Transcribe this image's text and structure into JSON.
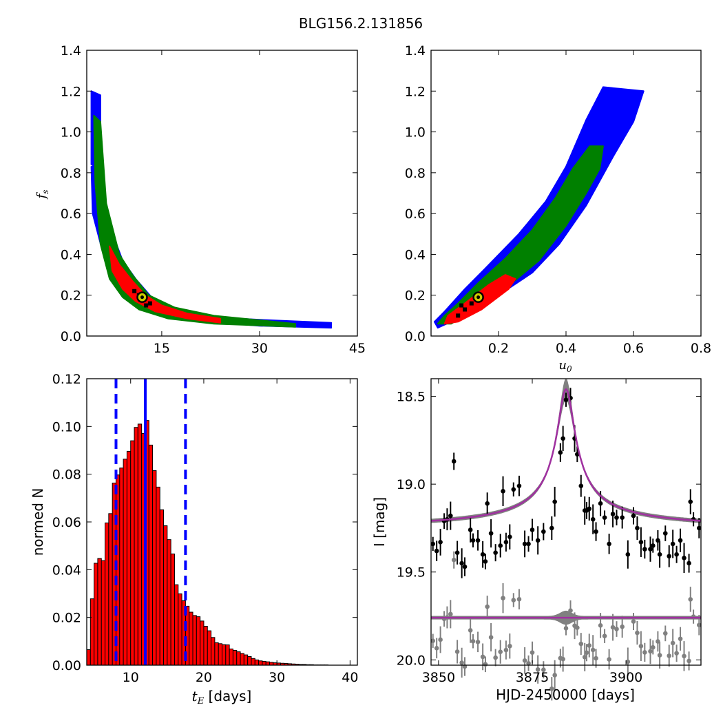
{
  "figure": {
    "title": "BLG156.2.131856"
  },
  "colors": {
    "sigma3": "#0000ff",
    "sigma2": "#008000",
    "sigma1": "#ff0000",
    "best": "#000000",
    "marker_ring": "#000000",
    "marker_fill": "#cccc00",
    "hist_bar": "#ff0000",
    "vline": "#0000ff",
    "model": "#a030a0",
    "model_band": "#808080",
    "data_main": "#000000",
    "data_resid": "#808080"
  },
  "chart_data": [
    {
      "id": "fs_vs_tE",
      "type": "heatmap",
      "xlabel": "",
      "ylabel": "f_s",
      "xlim": [
        3.5,
        45
      ],
      "ylim": [
        0.0,
        1.4
      ],
      "xticks": [
        "15",
        "30",
        "45"
      ],
      "yticks": [
        "0.0",
        "0.2",
        "0.4",
        "0.6",
        "0.8",
        "1.0",
        "1.2",
        "1.4"
      ],
      "best_fit": {
        "x": 12.0,
        "y": 0.19
      },
      "regions": {
        "sigma3": [
          [
            4.2,
            0.83
          ],
          [
            5.5,
            0.85
          ],
          [
            7,
            0.54
          ],
          [
            9,
            0.37
          ],
          [
            11,
            0.28
          ],
          [
            14,
            0.17
          ],
          [
            18,
            0.13
          ],
          [
            24,
            0.09
          ],
          [
            30,
            0.08
          ],
          [
            41,
            0.065
          ],
          [
            41,
            0.04
          ],
          [
            30,
            0.05
          ],
          [
            22,
            0.07
          ],
          [
            16,
            0.1
          ],
          [
            12,
            0.14
          ],
          [
            10,
            0.18
          ],
          [
            8,
            0.24
          ],
          [
            6.2,
            0.38
          ],
          [
            4.4,
            0.6
          ]
        ],
        "sigma3_top": [
          [
            4.2,
            1.2
          ],
          [
            5.6,
            1.18
          ],
          [
            5.6,
            0.84
          ],
          [
            4.2,
            0.84
          ]
        ],
        "sigma2": [
          [
            4.6,
            1.08
          ],
          [
            5.6,
            1.05
          ],
          [
            6.5,
            0.65
          ],
          [
            8.5,
            0.4
          ],
          [
            10.5,
            0.3
          ],
          [
            13,
            0.2
          ],
          [
            17,
            0.14
          ],
          [
            23,
            0.1
          ],
          [
            35.5,
            0.06
          ],
          [
            35.5,
            0.045
          ],
          [
            23,
            0.06
          ],
          [
            16,
            0.085
          ],
          [
            11.5,
            0.13
          ],
          [
            9,
            0.19
          ],
          [
            7,
            0.28
          ],
          [
            5.6,
            0.45
          ],
          [
            4.8,
            0.75
          ]
        ],
        "sigma1": [
          [
            7.0,
            0.44
          ],
          [
            8.5,
            0.35
          ],
          [
            10.5,
            0.27
          ],
          [
            12.5,
            0.2
          ],
          [
            15,
            0.15
          ],
          [
            19,
            0.11
          ],
          [
            24,
            0.085
          ],
          [
            24,
            0.065
          ],
          [
            19,
            0.085
          ],
          [
            14,
            0.12
          ],
          [
            11,
            0.17
          ],
          [
            9,
            0.23
          ],
          [
            7.4,
            0.32
          ]
        ]
      }
    },
    {
      "id": "fs_vs_u0",
      "type": "heatmap",
      "xlabel": "u_0",
      "ylabel": "",
      "xlim": [
        0.0,
        0.8
      ],
      "ylim": [
        0.0,
        1.4
      ],
      "xticks": [
        "0.2",
        "0.4",
        "0.6",
        "0.8"
      ],
      "yticks": [
        "0.0",
        "0.2",
        "0.4",
        "0.6",
        "0.8",
        "1.0",
        "1.2",
        "1.4"
      ],
      "best_fit": {
        "x": 0.14,
        "y": 0.19
      },
      "regions": {
        "sigma3": [
          [
            0.01,
            0.07
          ],
          [
            0.02,
            0.04
          ],
          [
            0.1,
            0.1
          ],
          [
            0.2,
            0.2
          ],
          [
            0.3,
            0.31
          ],
          [
            0.38,
            0.45
          ],
          [
            0.46,
            0.64
          ],
          [
            0.54,
            0.88
          ],
          [
            0.6,
            1.05
          ],
          [
            0.63,
            1.2
          ],
          [
            0.51,
            1.22
          ],
          [
            0.46,
            1.06
          ],
          [
            0.4,
            0.83
          ],
          [
            0.34,
            0.66
          ],
          [
            0.26,
            0.5
          ],
          [
            0.16,
            0.33
          ],
          [
            0.1,
            0.23
          ],
          [
            0.04,
            0.12
          ]
        ],
        "sigma2": [
          [
            0.02,
            0.06
          ],
          [
            0.06,
            0.06
          ],
          [
            0.14,
            0.14
          ],
          [
            0.24,
            0.26
          ],
          [
            0.32,
            0.37
          ],
          [
            0.4,
            0.54
          ],
          [
            0.46,
            0.7
          ],
          [
            0.5,
            0.82
          ],
          [
            0.51,
            0.93
          ],
          [
            0.47,
            0.93
          ],
          [
            0.42,
            0.82
          ],
          [
            0.37,
            0.68
          ],
          [
            0.3,
            0.52
          ],
          [
            0.22,
            0.38
          ],
          [
            0.14,
            0.26
          ],
          [
            0.08,
            0.16
          ],
          [
            0.04,
            0.1
          ]
        ],
        "sigma1": [
          [
            0.04,
            0.06
          ],
          [
            0.08,
            0.07
          ],
          [
            0.15,
            0.13
          ],
          [
            0.23,
            0.23
          ],
          [
            0.25,
            0.28
          ],
          [
            0.22,
            0.3
          ],
          [
            0.17,
            0.25
          ],
          [
            0.1,
            0.16
          ],
          [
            0.05,
            0.1
          ]
        ]
      }
    },
    {
      "id": "tE_histogram",
      "type": "bar",
      "xlabel": "t_E [days]",
      "ylabel": "normed N",
      "xlim": [
        4.0,
        41.0
      ],
      "ylim": [
        0.0,
        0.12
      ],
      "xticks": [
        "10",
        "20",
        "30",
        "40"
      ],
      "yticks": [
        "0.00",
        "0.02",
        "0.04",
        "0.06",
        "0.08",
        "0.10",
        "0.12"
      ],
      "bin_start": 4.0,
      "bin_width": 0.5,
      "values": [
        0.0065,
        0.0278,
        0.0427,
        0.0447,
        0.0438,
        0.0596,
        0.0635,
        0.0763,
        0.0797,
        0.0826,
        0.0863,
        0.0896,
        0.094,
        0.0996,
        0.101,
        0.0971,
        0.1025,
        0.0922,
        0.0815,
        0.0746,
        0.0651,
        0.0584,
        0.0526,
        0.0466,
        0.0337,
        0.0299,
        0.027,
        0.0247,
        0.0222,
        0.0208,
        0.0203,
        0.0185,
        0.0163,
        0.0144,
        0.0116,
        0.0094,
        0.009,
        0.0086,
        0.0085,
        0.0068,
        0.0062,
        0.0056,
        0.0049,
        0.0043,
        0.0036,
        0.0028,
        0.0022,
        0.0018,
        0.0016,
        0.0014,
        0.0012,
        0.001,
        0.0009,
        0.0008,
        0.0007,
        0.0006,
        0.0005,
        0.0004,
        0.0003,
        0.0003,
        0.0002,
        0.0002,
        0.0001,
        0.0001,
        0.0001,
        0.0001,
        0.0,
        0.0,
        0.0,
        0.0,
        0.0,
        0.0,
        0.0,
        0.0
      ],
      "vlines": [
        {
          "x": 8.0,
          "style": "dashed"
        },
        {
          "x": 12.0,
          "style": "solid"
        },
        {
          "x": 17.5,
          "style": "dashed"
        }
      ]
    },
    {
      "id": "lightcurve",
      "type": "scatter",
      "xlabel": "HJD-2450000 [days]",
      "ylabel": "I [mag]",
      "xlim": [
        3848,
        3920
      ],
      "ylim": [
        20.03,
        18.4
      ],
      "xticks": [
        "3850",
        "3875",
        "3900"
      ],
      "yticks": [
        "18.5",
        "19.0",
        "19.5",
        "20.0"
      ],
      "model": {
        "t0": 3884.0,
        "baseline": 19.26,
        "amplitude": 0.8,
        "tau": 2.3,
        "resid_baseline": 19.76
      },
      "series": [
        {
          "x": [
            3848.5,
            3849.5,
            3850.5,
            3851.5,
            3852.3,
            3853.2,
            3854.1,
            3855.0,
            3856.2,
            3857.0,
            3858.5,
            3859.2,
            3860.5,
            3861.8,
            3862.5,
            3863.0,
            3864.0,
            3865.2,
            3866.5,
            3867.2,
            3868.0,
            3869.0,
            3870.0,
            3871.5,
            3873.0,
            3874.0,
            3875.0,
            3876.5,
            3878.0,
            3880.2,
            3881.0,
            3882.5,
            3883.2,
            3884.0,
            3885.2,
            3886.3,
            3887.0,
            3888.0,
            3889.0,
            3889.5,
            3890.2,
            3891.2,
            3892.0,
            3893.2,
            3894.3,
            3895.5,
            3896.5,
            3897.5,
            3899.0,
            3900.5,
            3902.0,
            3903.0,
            3904.0,
            3905.0,
            3906.5,
            3907.2,
            3908.5,
            3909.0,
            3910.5,
            3911.5,
            3912.5,
            3913.5,
            3914.5,
            3915.5,
            3916.8,
            3917.2,
            3918.0,
            3919.5
          ],
          "y": [
            19.34,
            19.38,
            19.33,
            19.21,
            19.2,
            19.18,
            18.87,
            19.39,
            19.45,
            19.47,
            19.26,
            19.32,
            19.32,
            19.4,
            19.44,
            19.11,
            19.28,
            19.39,
            19.35,
            19.04,
            19.33,
            19.3,
            19.03,
            19.01,
            19.34,
            19.34,
            19.26,
            19.32,
            19.27,
            19.25,
            19.1,
            18.82,
            18.74,
            18.52,
            18.51,
            18.74,
            18.83,
            19.01,
            19.15,
            19.15,
            19.14,
            19.2,
            19.27,
            19.11,
            19.19,
            19.34,
            19.17,
            19.19,
            19.19,
            19.4,
            19.18,
            19.25,
            19.33,
            19.37,
            19.37,
            19.35,
            19.32,
            19.4,
            19.28,
            19.41,
            19.34,
            19.4,
            19.32,
            19.42,
            19.45,
            19.1,
            19.2,
            19.25
          ]
        }
      ]
    }
  ]
}
